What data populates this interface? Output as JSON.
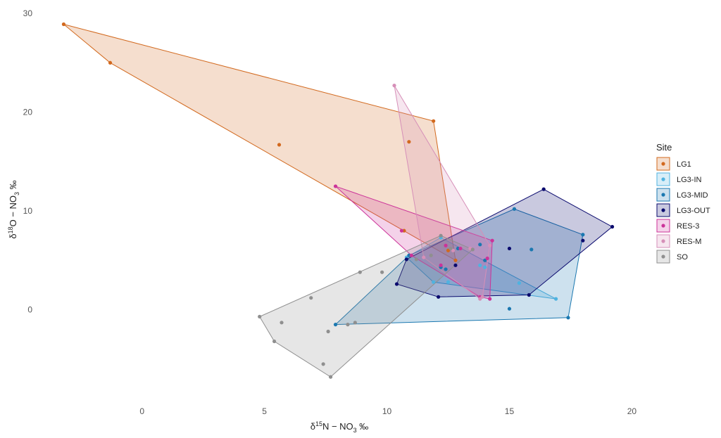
{
  "chart_data": {
    "type": "scatter",
    "title": "",
    "xlabel": {
      "delta": "δ",
      "sup": "15",
      "main": "N − NO",
      "sub": "3",
      "unit": " ‰"
    },
    "ylabel": {
      "delta": "δ",
      "sup": "18",
      "main": "O − NO",
      "sub": "3",
      "unit": " ‰"
    },
    "xlim": [
      -3.5,
      19.5
    ],
    "ylim": [
      -8.5,
      30.5
    ],
    "xticks": [
      0,
      5,
      10,
      15,
      20
    ],
    "yticks": [
      0,
      10,
      20,
      30
    ],
    "grid": false,
    "legend": {
      "title": "Site",
      "placement": "right"
    },
    "series": [
      {
        "name": "LG1",
        "color": "#d2691e",
        "x": [
          -3.2,
          -1.3,
          5.6,
          10.9,
          11.9,
          10.7,
          12.8,
          12.5
        ],
        "y": [
          28.9,
          25.0,
          16.7,
          17.0,
          19.1,
          8.0,
          5.0,
          6.0
        ]
      },
      {
        "name": "LG3-IN",
        "color": "#4fb3e0",
        "x": [
          10.8,
          11.9,
          12.2,
          13.8,
          14.0,
          15.4,
          16.9,
          12.5
        ],
        "y": [
          5.3,
          2.8,
          7.3,
          4.5,
          4.3,
          2.7,
          1.1,
          2.8
        ]
      },
      {
        "name": "LG3-MID",
        "color": "#1b78b0",
        "x": [
          7.9,
          10.9,
          12.2,
          12.9,
          13.8,
          15.0,
          15.2,
          15.9,
          17.4,
          18.0,
          14.0,
          12.4
        ],
        "y": [
          -1.5,
          5.5,
          4.3,
          6.2,
          6.6,
          0.1,
          10.2,
          6.1,
          -0.8,
          7.6,
          5.0,
          4.1
        ]
      },
      {
        "name": "LG3-OUT",
        "color": "#0a0a6e",
        "x": [
          10.4,
          10.8,
          12.1,
          12.8,
          15.0,
          15.8,
          16.4,
          18.0,
          19.2
        ],
        "y": [
          2.6,
          5.1,
          1.3,
          4.5,
          6.2,
          1.5,
          12.2,
          7.0,
          8.4
        ]
      },
      {
        "name": "RES-3",
        "color": "#cc3399",
        "x": [
          7.9,
          10.6,
          11.0,
          12.4,
          13.8,
          14.1,
          14.2,
          14.3,
          12.2,
          13.0
        ],
        "y": [
          12.5,
          8.0,
          5.5,
          6.5,
          1.3,
          5.2,
          1.1,
          7.0,
          4.5,
          6.2
        ]
      },
      {
        "name": "RES-M",
        "color": "#d68fb8",
        "x": [
          10.3,
          14.2,
          13.9,
          13.8,
          11.5,
          12.7,
          13.4
        ],
        "y": [
          22.7,
          6.5,
          1.3,
          1.1,
          5.3,
          6.0,
          6.2
        ]
      },
      {
        "name": "SO",
        "color": "#8f8f8f",
        "x": [
          4.8,
          5.4,
          5.7,
          6.9,
          7.4,
          7.6,
          7.7,
          8.4,
          8.7,
          8.9,
          9.8,
          11.2,
          11.8,
          12.2,
          12.6,
          13.5
        ],
        "y": [
          -0.7,
          -3.2,
          -1.3,
          1.2,
          -5.5,
          -2.2,
          -6.8,
          -1.5,
          -1.3,
          3.8,
          3.8,
          5.1,
          5.5,
          7.5,
          6.2,
          6.1
        ]
      }
    ]
  }
}
